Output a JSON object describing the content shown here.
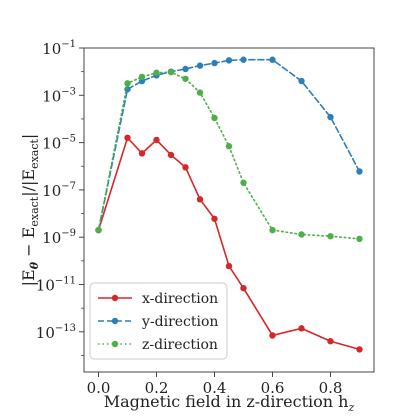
{
  "chart_data": {
    "type": "line",
    "xlabel": "Magnetic field in z-direction h",
    "xlabel_sub": "z",
    "ylabel_parts": {
      "open": "|E",
      "theta_sub": "θ",
      "minus": " − E",
      "exact_sub": "exact",
      "mid": "|/|E",
      "exact_sub2": "exact",
      "close": "|"
    },
    "xlim": [
      -0.05,
      0.95
    ],
    "ylim_log10": [
      -14.7,
      -1.0
    ],
    "y_scale": "log",
    "grid": false,
    "legend_position": "lower-left",
    "x_ticks": [
      0.0,
      0.2,
      0.4,
      0.6,
      0.8
    ],
    "x_tick_labels": [
      "0.0",
      "0.2",
      "0.4",
      "0.6",
      "0.8"
    ],
    "y_ticks_log10": [
      -13,
      -11,
      -9,
      -7,
      -5,
      -3,
      -1
    ],
    "y_tick_labels": [
      {
        "base": "10",
        "exp": "−13"
      },
      {
        "base": "10",
        "exp": "−11"
      },
      {
        "base": "10",
        "exp": "−9"
      },
      {
        "base": "10",
        "exp": "−7"
      },
      {
        "base": "10",
        "exp": "−5"
      },
      {
        "base": "10",
        "exp": "−3"
      },
      {
        "base": "10",
        "exp": "−1"
      }
    ],
    "series": [
      {
        "name": "x-direction",
        "color": "#d62728",
        "dash": "solid",
        "x": [
          0.0,
          0.1,
          0.15,
          0.2,
          0.25,
          0.3,
          0.35,
          0.4,
          0.45,
          0.5,
          0.6,
          0.7,
          0.8,
          0.9
        ],
        "y": [
          2e-09,
          1.6e-05,
          3.5e-06,
          1.3e-05,
          3e-06,
          9e-07,
          4e-08,
          6e-09,
          6e-11,
          7e-12,
          7e-14,
          1.4e-13,
          4e-14,
          1.8e-14
        ]
      },
      {
        "name": "y-direction",
        "color": "#2e7eb8",
        "dash": "dashed",
        "x": [
          0.0,
          0.1,
          0.15,
          0.2,
          0.25,
          0.3,
          0.35,
          0.4,
          0.45,
          0.5,
          0.6,
          0.7,
          0.8,
          0.9
        ],
        "y": [
          2e-09,
          0.0018,
          0.004,
          0.007,
          0.01,
          0.013,
          0.018,
          0.023,
          0.03,
          0.032,
          0.032,
          0.004,
          0.00012,
          6e-07
        ]
      },
      {
        "name": "z-direction",
        "color": "#4daf4a",
        "dash": "dotted",
        "x": [
          0.0,
          0.1,
          0.15,
          0.2,
          0.25,
          0.3,
          0.35,
          0.4,
          0.45,
          0.5,
          0.6,
          0.7,
          0.8,
          0.9
        ],
        "y": [
          2e-09,
          0.0032,
          0.006,
          0.009,
          0.0095,
          0.005,
          0.0013,
          0.00011,
          7e-06,
          2e-07,
          2e-09,
          1.3e-09,
          1.1e-09,
          8.5e-10
        ]
      }
    ]
  }
}
